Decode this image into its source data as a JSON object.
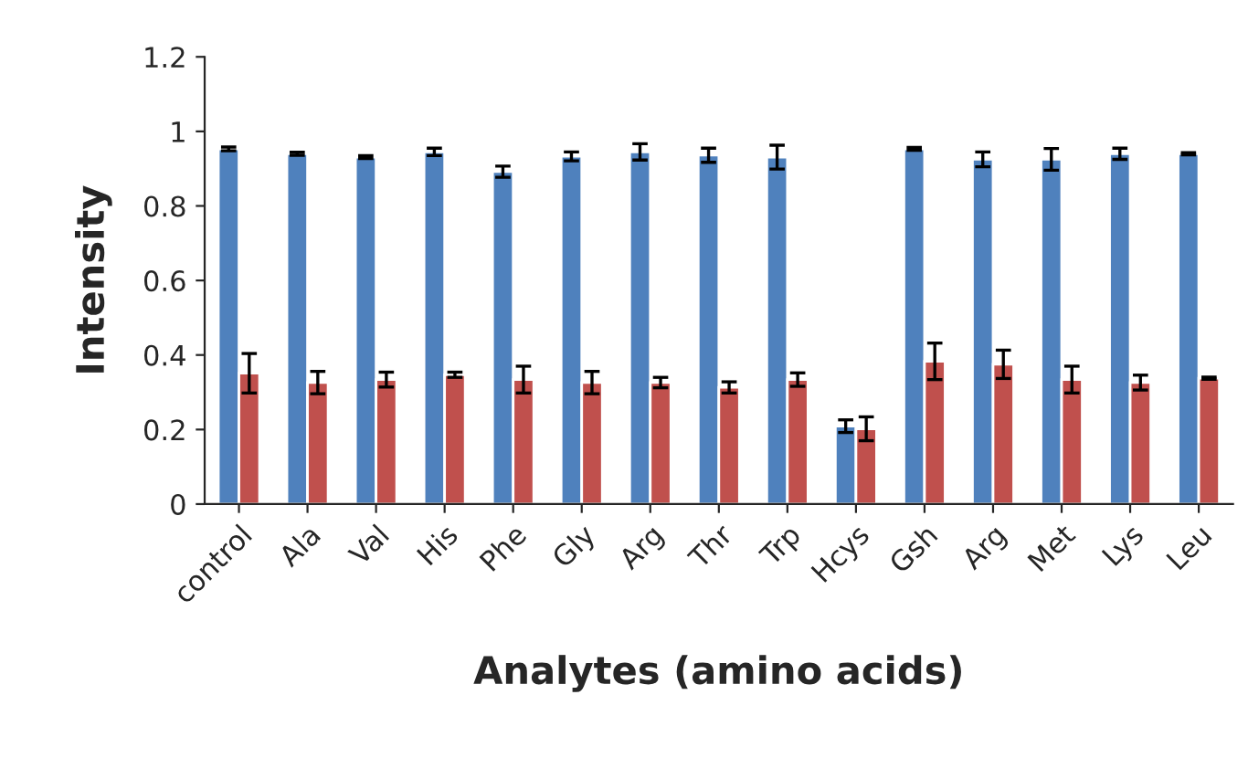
{
  "chart_data": {
    "type": "bar",
    "xlabel": "Analytes (amino acids)",
    "ylabel": "Intensity",
    "categories": [
      "control",
      "Ala",
      "Val",
      "His",
      "Phe",
      "Gly",
      "Arg",
      "Thr",
      "Trp",
      "Hcys",
      "Gsh",
      "Arg",
      "Met",
      "Lys",
      "Leu"
    ],
    "series": [
      {
        "color": "#4f81bd",
        "values": [
          0.953,
          0.94,
          0.931,
          0.945,
          0.892,
          0.933,
          0.945,
          0.936,
          0.931,
          0.209,
          0.953,
          0.925,
          0.925,
          0.94,
          0.94
        ],
        "errors": [
          0.005,
          0.004,
          0.004,
          0.01,
          0.015,
          0.012,
          0.022,
          0.019,
          0.032,
          0.017,
          0.004,
          0.02,
          0.029,
          0.015,
          0.003
        ]
      },
      {
        "color": "#c0504d",
        "values": [
          0.351,
          0.326,
          0.334,
          0.347,
          0.334,
          0.326,
          0.326,
          0.313,
          0.334,
          0.202,
          0.383,
          0.375,
          0.334,
          0.326,
          0.338
        ],
        "errors": [
          0.053,
          0.03,
          0.02,
          0.007,
          0.036,
          0.03,
          0.014,
          0.015,
          0.018,
          0.032,
          0.049,
          0.038,
          0.036,
          0.02,
          0.003
        ]
      }
    ],
    "ylim": [
      0,
      1.2
    ],
    "yticks": [
      0,
      0.2,
      0.4,
      0.6,
      0.8,
      1,
      1.2
    ],
    "grid": false
  }
}
